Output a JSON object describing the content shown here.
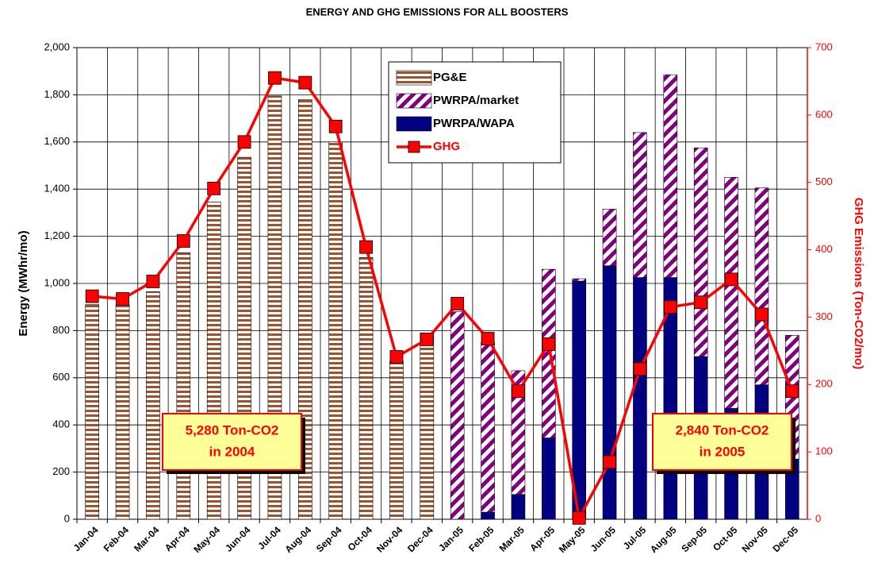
{
  "chart_data": {
    "type": "bar",
    "stacked": true,
    "title": "ENERGY AND GHG EMISSIONS FOR ALL BOOSTERS",
    "y_label": "Energy (MWhr/mo)",
    "y2_label": "GHG Emissions (Ton-CO2/mo)",
    "categories": [
      "Jan-04",
      "Feb-04",
      "Mar-04",
      "Apr-04",
      "May-04",
      "Jun-04",
      "Jul-04",
      "Aug-04",
      "Sep-04",
      "Oct-04",
      "Nov-04",
      "Dec-04",
      "Jan-05",
      "Feb-05",
      "Mar-05",
      "Apr-05",
      "May-05",
      "Jun-05",
      "Jul-05",
      "Aug-05",
      "Sep-05",
      "Oct-05",
      "Nov-05",
      "Dec-05"
    ],
    "series": [
      {
        "name": "PG&E",
        "color": "#a0522d",
        "pattern": "horizontal-stripes",
        "values": [
          910,
          910,
          965,
          1130,
          1345,
          1535,
          1795,
          1780,
          1600,
          1110,
          670,
          790,
          0,
          0,
          0,
          0,
          0,
          0,
          0,
          0,
          0,
          0,
          0,
          0
        ]
      },
      {
        "name": "PWRPA/market",
        "color": "#800080",
        "pattern": "diagonal-stripes",
        "values": [
          0,
          0,
          0,
          0,
          0,
          0,
          0,
          0,
          0,
          0,
          0,
          0,
          880,
          720,
          525,
          715,
          10,
          240,
          615,
          860,
          885,
          980,
          835,
          525
        ]
      },
      {
        "name": "PWRPA/WAPA",
        "color": "#000080",
        "values": [
          0,
          0,
          0,
          0,
          0,
          0,
          0,
          0,
          0,
          0,
          0,
          0,
          0,
          30,
          105,
          345,
          1010,
          1075,
          1025,
          1025,
          690,
          470,
          570,
          255
        ]
      },
      {
        "name": "GHG",
        "type": "line",
        "axis": "y2",
        "color": "#ff0000",
        "values": [
          331,
          327,
          353,
          413,
          491,
          560,
          655,
          648,
          583,
          404,
          241,
          267,
          320,
          268,
          190,
          260,
          2,
          85,
          223,
          315,
          322,
          356,
          304,
          190
        ]
      }
    ],
    "ylim": [
      0,
      2000
    ],
    "yticks": [
      0,
      200,
      400,
      600,
      800,
      {
        "value": 1000,
        "label": "1,000"
      },
      {
        "value": 1200,
        "label": "1,200"
      },
      {
        "value": 1400,
        "label": "1,400"
      },
      {
        "value": 1600,
        "label": "1,600"
      },
      {
        "value": 1800,
        "label": "1,800"
      },
      {
        "value": 2000,
        "label": "2,000"
      }
    ],
    "y2lim": [
      0,
      700
    ],
    "y2ticks": [
      0,
      100,
      200,
      300,
      400,
      500,
      600,
      700
    ],
    "grid": true,
    "legend": "top",
    "annotations": [
      {
        "lines": [
          "5,280 Ton-CO2",
          "in 2004"
        ]
      },
      {
        "lines": [
          "2,840 Ton-CO2",
          "in 2005"
        ]
      }
    ]
  }
}
